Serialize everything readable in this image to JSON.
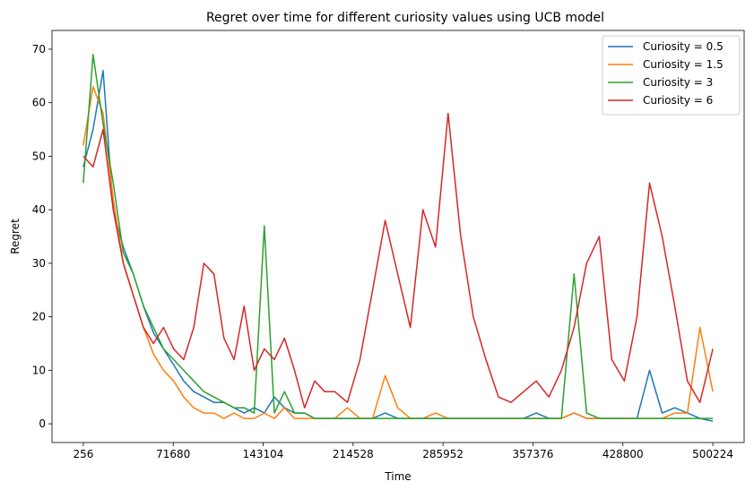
{
  "chart_data": {
    "type": "line",
    "title": "Regret over time for different curiosity values using UCB model",
    "xlabel": "Time",
    "ylabel": "Regret",
    "xlim": [
      -24600,
      525100
    ],
    "ylim": [
      -3.5,
      73.5
    ],
    "xticks": [
      256,
      71680,
      143104,
      214528,
      285952,
      357376,
      428800,
      500224
    ],
    "yticks": [
      0,
      10,
      20,
      30,
      40,
      50,
      60,
      70
    ],
    "grid": false,
    "legend_position": "top-right",
    "series": [
      {
        "name": "Curiosity = 0.5",
        "color": "#1f77b4",
        "x": [
          256,
          8000,
          16000,
          24000,
          32000,
          40000,
          48000,
          56000,
          64000,
          72000,
          80000,
          88000,
          96000,
          104000,
          112000,
          120000,
          128000,
          136000,
          144000,
          152000,
          160000,
          168000,
          176000,
          184000,
          192000,
          200000,
          210000,
          220000,
          230000,
          240000,
          250000,
          260000,
          270000,
          280000,
          290000,
          300000,
          310000,
          320000,
          330000,
          340000,
          350000,
          360000,
          370000,
          380000,
          390000,
          400000,
          410000,
          420000,
          430000,
          440000,
          450000,
          460000,
          470000,
          480000,
          490000,
          500224
        ],
        "y": [
          48,
          55,
          66,
          40,
          33,
          28,
          22,
          17,
          14,
          11,
          8,
          6,
          5,
          4,
          4,
          3,
          2,
          3,
          2,
          5,
          3,
          2,
          2,
          1,
          1,
          1,
          1,
          1,
          1,
          2,
          1,
          1,
          1,
          1,
          1,
          1,
          1,
          1,
          1,
          1,
          1,
          2,
          1,
          1,
          2,
          1,
          1,
          1,
          1,
          1,
          10,
          2,
          3,
          2,
          1,
          0.5
        ]
      },
      {
        "name": "Curiosity = 1.5",
        "color": "#ff7f0e",
        "x": [
          256,
          8000,
          16000,
          24000,
          32000,
          40000,
          48000,
          56000,
          64000,
          72000,
          80000,
          88000,
          96000,
          104000,
          112000,
          120000,
          128000,
          136000,
          144000,
          152000,
          160000,
          168000,
          176000,
          184000,
          192000,
          200000,
          210000,
          220000,
          230000,
          240000,
          250000,
          260000,
          270000,
          280000,
          290000,
          300000,
          310000,
          320000,
          330000,
          340000,
          350000,
          360000,
          370000,
          380000,
          390000,
          400000,
          410000,
          420000,
          430000,
          440000,
          450000,
          460000,
          470000,
          480000,
          490000,
          500224
        ],
        "y": [
          52,
          63,
          58,
          42,
          30,
          24,
          18,
          13,
          10,
          8,
          5,
          3,
          2,
          2,
          1,
          2,
          1,
          1,
          2,
          1,
          3,
          1,
          1,
          1,
          1,
          1,
          3,
          1,
          1,
          9,
          3,
          1,
          1,
          2,
          1,
          1,
          1,
          1,
          1,
          1,
          1,
          1,
          1,
          1,
          2,
          1,
          1,
          1,
          1,
          1,
          1,
          1,
          2,
          2,
          18,
          6
        ]
      },
      {
        "name": "Curiosity = 3",
        "color": "#2ca02c",
        "x": [
          256,
          8000,
          16000,
          24000,
          32000,
          40000,
          48000,
          56000,
          64000,
          72000,
          80000,
          88000,
          96000,
          104000,
          112000,
          120000,
          128000,
          136000,
          144000,
          152000,
          160000,
          168000,
          176000,
          184000,
          192000,
          200000,
          210000,
          220000,
          230000,
          240000,
          250000,
          260000,
          270000,
          280000,
          290000,
          300000,
          310000,
          320000,
          330000,
          340000,
          350000,
          360000,
          370000,
          380000,
          390000,
          400000,
          410000,
          420000,
          430000,
          440000,
          450000,
          460000,
          470000,
          480000,
          490000,
          500224
        ],
        "y": [
          45,
          69,
          56,
          45,
          32,
          28,
          22,
          18,
          14,
          12,
          10,
          8,
          6,
          5,
          4,
          3,
          3,
          2,
          37,
          2,
          6,
          2,
          2,
          1,
          1,
          1,
          1,
          1,
          1,
          1,
          1,
          1,
          1,
          1,
          1,
          1,
          1,
          1,
          1,
          1,
          1,
          1,
          1,
          1,
          28,
          2,
          1,
          1,
          1,
          1,
          1,
          1,
          1,
          1,
          1,
          1
        ]
      },
      {
        "name": "Curiosity = 6",
        "color": "#d62728",
        "x": [
          256,
          8000,
          16000,
          24000,
          32000,
          40000,
          48000,
          56000,
          64000,
          72000,
          80000,
          88000,
          96000,
          104000,
          112000,
          120000,
          128000,
          136000,
          144000,
          152000,
          160000,
          168000,
          176000,
          184000,
          192000,
          200000,
          210000,
          220000,
          230000,
          240000,
          250000,
          260000,
          270000,
          280000,
          290000,
          300000,
          310000,
          320000,
          330000,
          340000,
          350000,
          360000,
          370000,
          380000,
          390000,
          400000,
          410000,
          420000,
          430000,
          440000,
          450000,
          460000,
          470000,
          480000,
          490000,
          500224
        ],
        "y": [
          50,
          48,
          55,
          40,
          30,
          24,
          18,
          15,
          18,
          14,
          12,
          18,
          30,
          28,
          16,
          12,
          22,
          10,
          14,
          12,
          16,
          10,
          3,
          8,
          6,
          6,
          4,
          12,
          25,
          38,
          28,
          18,
          40,
          33,
          58,
          35,
          20,
          12,
          5,
          4,
          6,
          8,
          5,
          10,
          18,
          30,
          35,
          12,
          8,
          20,
          45,
          35,
          22,
          8,
          4,
          14
        ]
      }
    ]
  }
}
